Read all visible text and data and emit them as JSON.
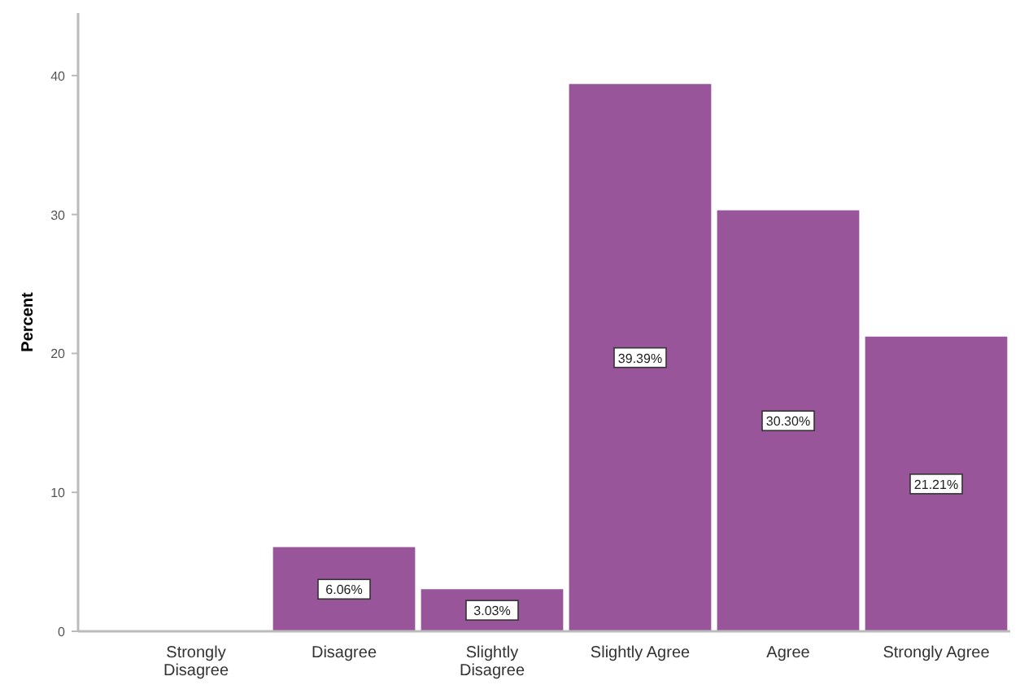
{
  "chart_data": {
    "type": "bar",
    "ylabel": "Percent",
    "categories": [
      "Strongly Disagree",
      "Disagree",
      "Slightly Disagree",
      "Slightly Agree",
      "Agree",
      "Strongly Agree"
    ],
    "values": [
      0,
      6.06,
      3.03,
      39.39,
      30.3,
      21.21
    ],
    "value_labels": [
      null,
      "6.06%",
      "3.03%",
      "39.39%",
      "30.30%",
      "21.21%"
    ],
    "color": "#995599",
    "ylim": [
      0,
      44.5
    ],
    "yticks": [
      0,
      10,
      20,
      30,
      40
    ],
    "grid": false
  }
}
